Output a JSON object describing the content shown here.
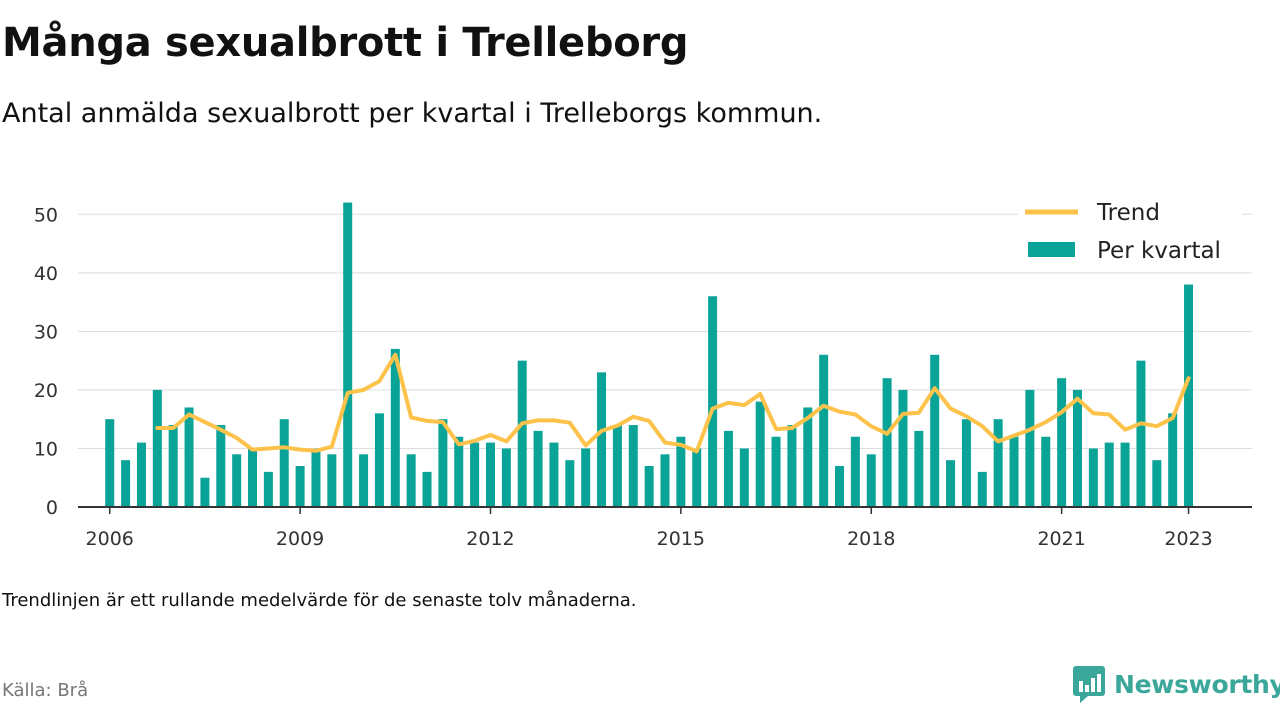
{
  "header": {
    "title": "Många sexualbrott i Trelleborg",
    "subtitle": "Antal anmälda sexualbrott per kvartal i Trelleborgs kommun."
  },
  "footer": {
    "note": "Trendlinjen är ett rullande medelvärde för de senaste tolv månaderna.",
    "source": "Källa: Brå",
    "brand": "Newsworthy"
  },
  "colors": {
    "bar": "#0aa398",
    "trend": "#fcc24a",
    "grid": "#dddddd",
    "axis": "#333333",
    "brand": "#3aa79a"
  },
  "chart_data": {
    "type": "bar",
    "ylim": [
      0,
      55
    ],
    "yticks": [
      0,
      10,
      20,
      30,
      40,
      50
    ],
    "xlim": [
      2005.5,
      2024.0
    ],
    "xticks": [
      2006,
      2009,
      2012,
      2015,
      2018,
      2021,
      2023
    ],
    "grid": true,
    "legend_position": "top-right",
    "x": [
      "2006 Q1",
      "2006 Q2",
      "2006 Q3",
      "2006 Q4",
      "2007 Q1",
      "2007 Q2",
      "2007 Q3",
      "2007 Q4",
      "2008 Q1",
      "2008 Q2",
      "2008 Q3",
      "2008 Q4",
      "2009 Q1",
      "2009 Q2",
      "2009 Q3",
      "2009 Q4",
      "2010 Q1",
      "2010 Q2",
      "2010 Q3",
      "2010 Q4",
      "2011 Q1",
      "2011 Q2",
      "2011 Q3",
      "2011 Q4",
      "2012 Q1",
      "2012 Q2",
      "2012 Q3",
      "2012 Q4",
      "2013 Q1",
      "2013 Q2",
      "2013 Q3",
      "2013 Q4",
      "2014 Q1",
      "2014 Q2",
      "2014 Q3",
      "2014 Q4",
      "2015 Q1",
      "2015 Q2",
      "2015 Q3",
      "2015 Q4",
      "2016 Q1",
      "2016 Q2",
      "2016 Q3",
      "2016 Q4",
      "2017 Q1",
      "2017 Q2",
      "2017 Q3",
      "2017 Q4",
      "2018 Q1",
      "2018 Q2",
      "2018 Q3",
      "2018 Q4",
      "2019 Q1",
      "2019 Q2",
      "2019 Q3",
      "2019 Q4",
      "2020 Q1",
      "2020 Q2",
      "2020 Q3",
      "2020 Q4",
      "2021 Q1",
      "2021 Q2",
      "2021 Q3",
      "2021 Q4",
      "2022 Q1",
      "2022 Q2",
      "2022 Q3",
      "2022 Q4",
      "2023 Q1"
    ],
    "series": [
      {
        "name": "Per kvartal",
        "type": "bar",
        "values": [
          15,
          8,
          11,
          20,
          14,
          17,
          5,
          14,
          9,
          10,
          6,
          15,
          7,
          10,
          9,
          52,
          9,
          16,
          27,
          9,
          6,
          15,
          12,
          11,
          11,
          10,
          25,
          13,
          11,
          8,
          10,
          23,
          14,
          14,
          7,
          9,
          12,
          10,
          36,
          13,
          10,
          18,
          12,
          14,
          17,
          26,
          7,
          12,
          9,
          22,
          20,
          13,
          26,
          8,
          15,
          6,
          15,
          12,
          20,
          12,
          22,
          20,
          10,
          11,
          11,
          25,
          8,
          16,
          38
        ]
      },
      {
        "name": "Trend",
        "type": "line",
        "values": [
          null,
          null,
          null,
          13.5,
          13.5,
          15.8,
          14.5,
          13.2,
          11.8,
          9.8,
          10,
          10.2,
          9.8,
          9.6,
          10.3,
          19.5,
          20,
          21.5,
          26,
          15.3,
          14.7,
          14.5,
          10.7,
          11.3,
          12.3,
          11.2,
          14.3,
          14.8,
          14.8,
          14.4,
          10.5,
          13,
          13.9,
          15.4,
          14.7,
          11,
          10.6,
          9.5,
          16.8,
          17.8,
          17.4,
          19.3,
          13.3,
          13.5,
          15.2,
          17.3,
          16.3,
          15.8,
          13.8,
          12.5,
          15.9,
          16.1,
          20.3,
          16.8,
          15.5,
          13.8,
          11.2,
          12.2,
          13.2,
          14.5,
          16.2,
          18.5,
          16,
          15.8,
          13.2,
          14.3,
          13.8,
          15.2,
          22
        ]
      }
    ]
  }
}
